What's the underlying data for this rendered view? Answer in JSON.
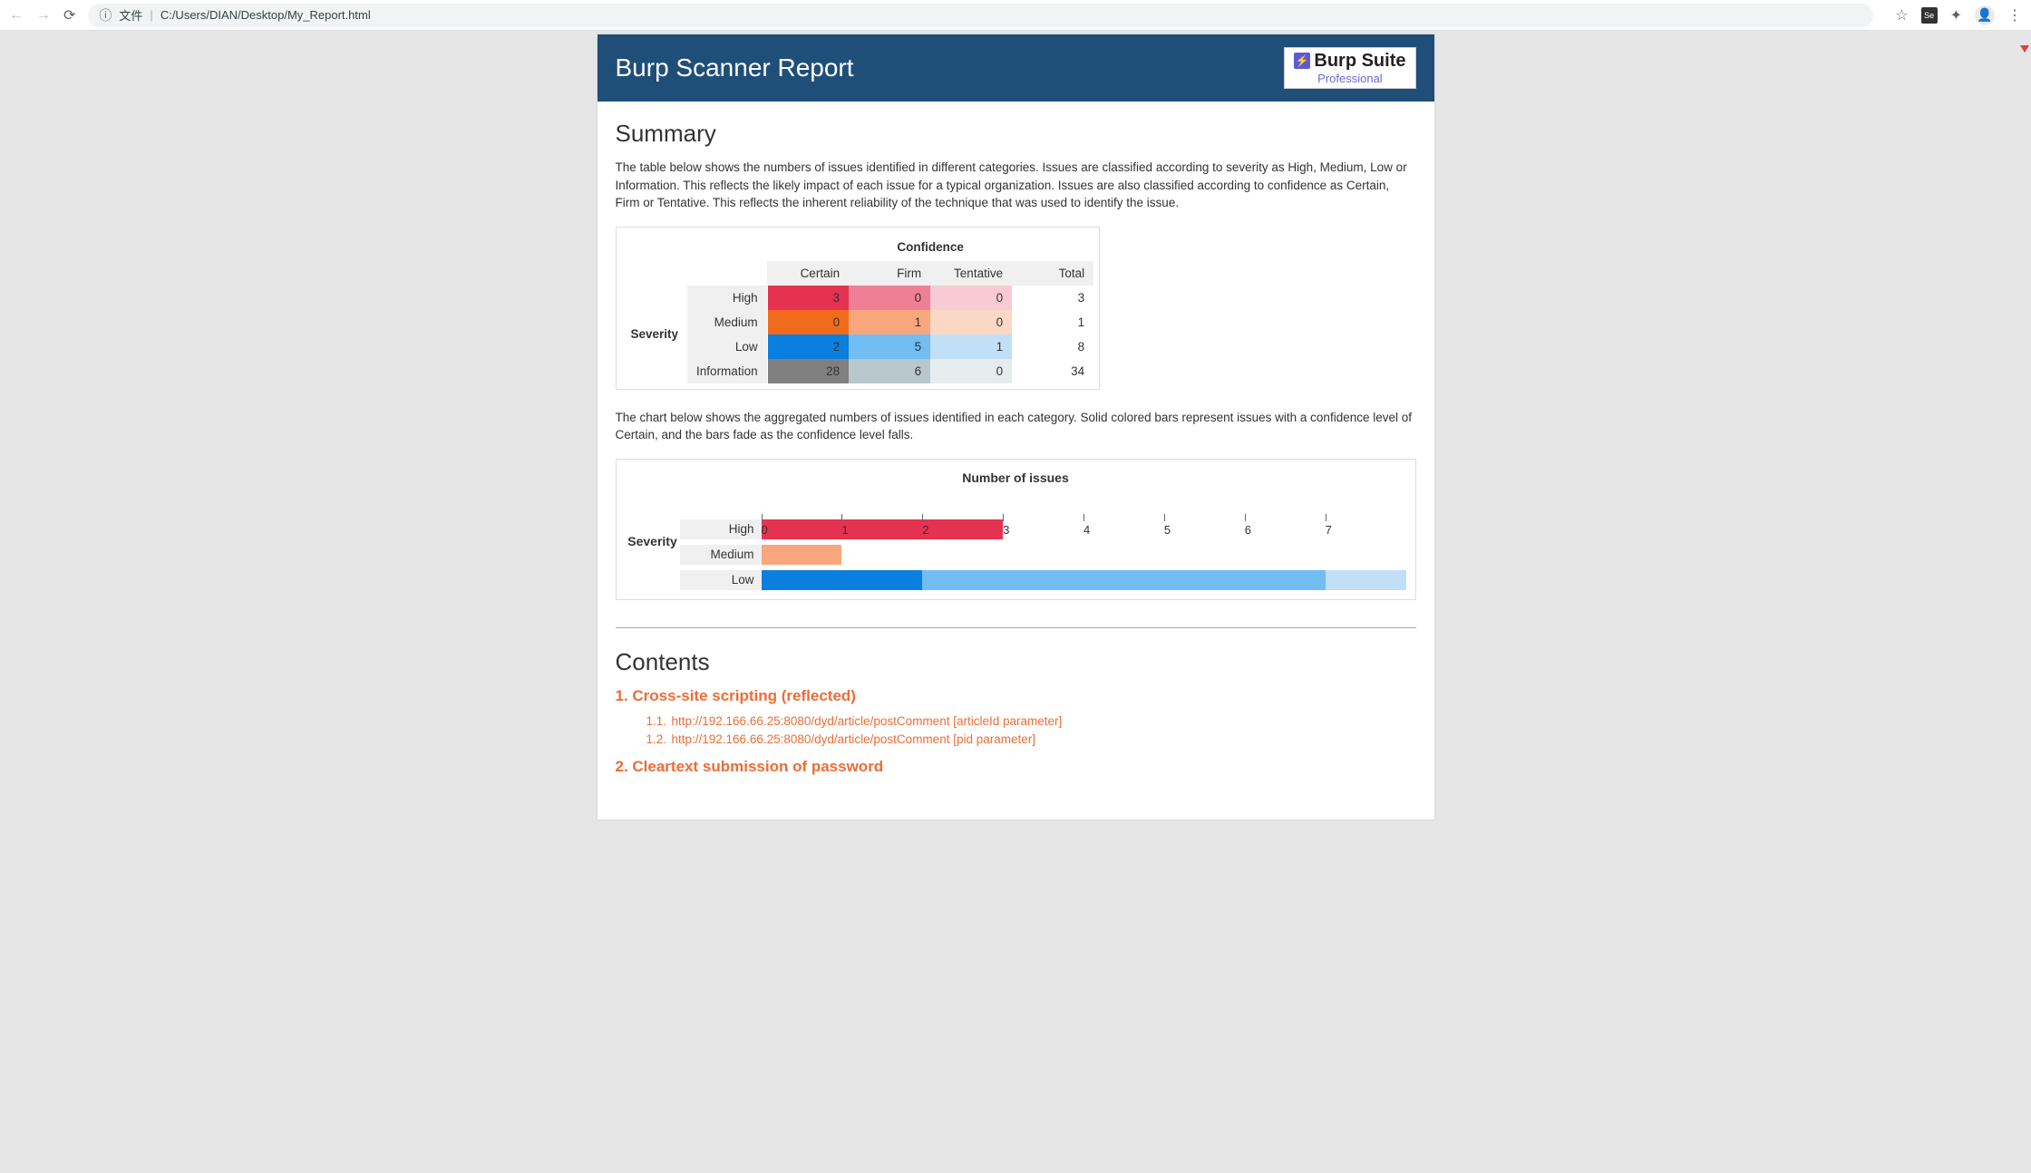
{
  "browser": {
    "file_label": "文件",
    "url": "C:/Users/DIAN/Desktop/My_Report.html",
    "ext_badge": "Se"
  },
  "header": {
    "title": "Burp Scanner Report",
    "logo_name": "Burp Suite",
    "logo_sub": "Professional"
  },
  "summary": {
    "heading": "Summary",
    "intro": "The table below shows the numbers of issues identified in different categories. Issues are classified according to severity as High, Medium, Low or Information. This reflects the likely impact of each issue for a typical organization. Issues are also classified according to confidence as Certain, Firm or Tentative. This reflects the inherent reliability of the technique that was used to identify the issue.",
    "table_col_caption": "Confidence",
    "table_row_caption": "Severity",
    "columns": [
      "Certain",
      "Firm",
      "Tentative",
      "Total"
    ],
    "rows": [
      "High",
      "Medium",
      "Low",
      "Information"
    ],
    "cells": [
      [
        3,
        0,
        0,
        3
      ],
      [
        0,
        1,
        0,
        1
      ],
      [
        2,
        5,
        1,
        8
      ],
      [
        28,
        6,
        0,
        34
      ]
    ],
    "cell_colors": [
      [
        "#e63251",
        "#ef7f94",
        "#f8cbd4",
        "#ffffff"
      ],
      [
        "#f26b1d",
        "#f7a77b",
        "#fbd8c4",
        "#ffffff"
      ],
      [
        "#0b7fe0",
        "#72bdf1",
        "#c1e0f8",
        "#ffffff"
      ],
      [
        "#808080",
        "#b8c7cb",
        "#e5ecee",
        "#ffffff"
      ]
    ],
    "cell_text_white": [
      [
        true,
        true,
        false,
        false
      ],
      [
        true,
        true,
        false,
        false
      ],
      [
        true,
        true,
        false,
        false
      ],
      [
        true,
        true,
        false,
        false
      ]
    ],
    "chart_intro": "The chart below shows the aggregated numbers of issues identified in each category. Solid colored bars represent issues with a confidence level of Certain, and the bars fade as the confidence level falls.",
    "chart_title": "Number of issues",
    "chart_ylabel": "Severity",
    "chart_x_ticks": [
      0,
      1,
      2,
      3,
      4,
      5,
      6,
      7
    ],
    "chart_x_max": 8,
    "chart_rows": [
      {
        "label": "High",
        "segments": [
          {
            "value": 3,
            "color": "#e63251"
          },
          {
            "value": 0,
            "color": "#ef7f94"
          },
          {
            "value": 0,
            "color": "#f8cbd4"
          }
        ]
      },
      {
        "label": "Medium",
        "segments": [
          {
            "value": 0,
            "color": "#f26b1d"
          },
          {
            "value": 1,
            "color": "#f7a77b"
          },
          {
            "value": 0,
            "color": "#fbd8c4"
          }
        ]
      },
      {
        "label": "Low",
        "segments": [
          {
            "value": 2,
            "color": "#0b7fe0"
          },
          {
            "value": 5,
            "color": "#72bdf1"
          },
          {
            "value": 1,
            "color": "#c1e0f8"
          }
        ]
      }
    ]
  },
  "contents": {
    "heading": "Contents",
    "items": [
      {
        "idx": "1.",
        "title": "Cross-site scripting (reflected)",
        "subs": [
          {
            "idx": "1.1.",
            "text": "http://192.166.66.25:8080/dyd/article/postComment [articleId parameter]"
          },
          {
            "idx": "1.2.",
            "text": "http://192.166.66.25:8080/dyd/article/postComment [pid parameter]"
          }
        ]
      },
      {
        "idx": "2.",
        "title": "Cleartext submission of password",
        "subs": []
      }
    ]
  }
}
